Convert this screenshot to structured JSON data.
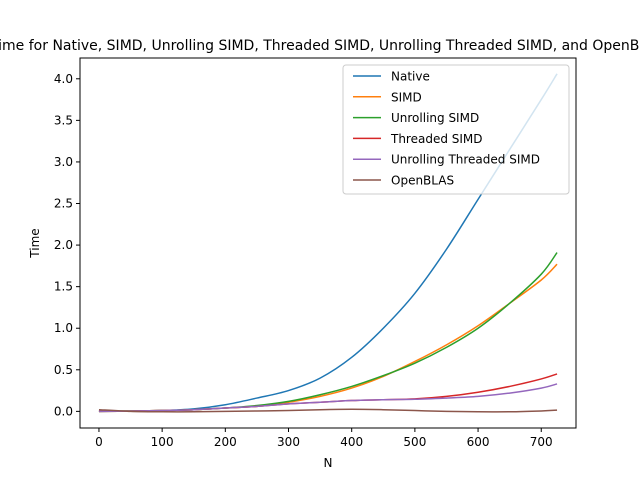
{
  "chart_data": {
    "type": "line",
    "title": "Time for Native, SIMD, Unrolling SIMD, Threaded SIMD, Unrolling Threaded SIMD, and OpenBLAS",
    "xlabel": "N",
    "ylabel": "Time",
    "xlim": [
      -30,
      755
    ],
    "ylim": [
      -0.2,
      4.25
    ],
    "xticks": [
      0,
      100,
      200,
      300,
      400,
      500,
      600,
      700
    ],
    "yticks": [
      0.0,
      0.5,
      1.0,
      1.5,
      2.0,
      2.5,
      3.0,
      3.5,
      4.0
    ],
    "grid": false,
    "legend_position": "top-right",
    "x": [
      0,
      50,
      100,
      150,
      200,
      250,
      300,
      350,
      400,
      450,
      500,
      550,
      600,
      650,
      700,
      725
    ],
    "series": [
      {
        "name": "Native",
        "color": "#1f77b4",
        "values": [
          0.0,
          0.005,
          0.01,
          0.03,
          0.08,
          0.16,
          0.25,
          0.4,
          0.65,
          1.0,
          1.42,
          1.95,
          2.55,
          3.15,
          3.75,
          4.06
        ]
      },
      {
        "name": "SIMD",
        "color": "#ff7f0e",
        "values": [
          0.0,
          0.003,
          0.01,
          0.02,
          0.04,
          0.06,
          0.11,
          0.18,
          0.28,
          0.42,
          0.6,
          0.8,
          1.03,
          1.3,
          1.58,
          1.77
        ]
      },
      {
        "name": "Unrolling SIMD",
        "color": "#2ca02c",
        "values": [
          0.0,
          0.003,
          0.01,
          0.02,
          0.04,
          0.07,
          0.12,
          0.2,
          0.3,
          0.43,
          0.58,
          0.77,
          1.0,
          1.3,
          1.65,
          1.91
        ]
      },
      {
        "name": "Threaded SIMD",
        "color": "#d62728",
        "values": [
          0.0,
          0.003,
          0.01,
          0.02,
          0.04,
          0.06,
          0.09,
          0.11,
          0.13,
          0.14,
          0.15,
          0.18,
          0.23,
          0.3,
          0.39,
          0.45
        ]
      },
      {
        "name": "Unrolling Threaded SIMD",
        "color": "#9467bd",
        "values": [
          0.0,
          0.003,
          0.01,
          0.02,
          0.04,
          0.06,
          0.09,
          0.11,
          0.13,
          0.14,
          0.145,
          0.16,
          0.18,
          0.22,
          0.28,
          0.33
        ]
      },
      {
        "name": "OpenBLAS",
        "color": "#8c564b",
        "values": [
          0.02,
          0.0,
          -0.005,
          -0.005,
          0.0,
          0.005,
          0.01,
          0.02,
          0.025,
          0.02,
          0.01,
          0.0,
          -0.005,
          -0.005,
          0.005,
          0.015
        ]
      }
    ]
  }
}
